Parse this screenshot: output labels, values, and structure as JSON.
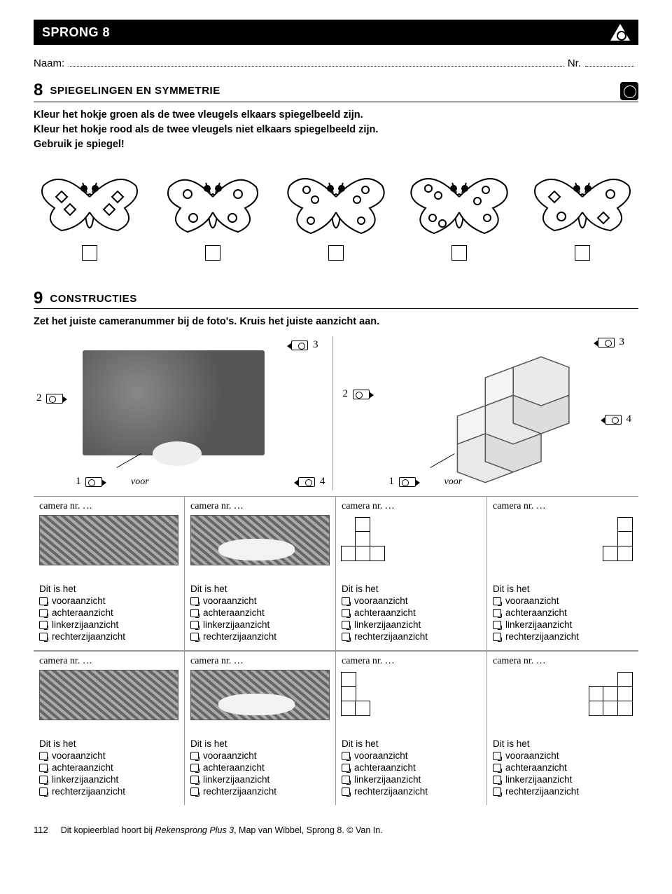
{
  "header": {
    "title": "SPRONG 8"
  },
  "name_row": {
    "naam_label": "Naam:",
    "nr_label": "Nr."
  },
  "section8": {
    "number": "8",
    "title": "SPIEGELINGEN EN SYMMETRIE",
    "instr_line1": "Kleur het hokje groen als de twee vleugels elkaars spiegelbeeld zijn.",
    "instr_line2": "Kleur het hokje rood als de twee vleugels niet elkaars spiegelbeeld zijn.",
    "instr_line3": "Gebruik je spiegel!"
  },
  "section9": {
    "number": "9",
    "title": "CONSTRUCTIES",
    "instr": "Zet het juiste cameranummer bij de foto's. Kruis het juiste aanzicht aan.",
    "camera_numbers": {
      "c1": "1",
      "c2": "2",
      "c3": "3",
      "c4": "4"
    },
    "voor": "voor",
    "camnr_label": "camera nr. …",
    "ditishet": "Dit is het",
    "options": {
      "vooraanzicht": "vooraanzicht",
      "achteraanzicht": "achteraanzicht",
      "linkerzijaanzicht": "linkerzijaanzicht",
      "rechterzijaanzicht": "rechterzijaanzicht"
    }
  },
  "footer": {
    "page": "112",
    "text_before": "Dit kopieerblad hoort bij ",
    "text_italic": "Rekensprong Plus 3",
    "text_after": ", Map van Wibbel, Sprong 8. © Van In."
  },
  "colors": {
    "black": "#000000",
    "white": "#ffffff",
    "grid_border": "#999999",
    "marble_dark": "#555555",
    "marble_light": "#aaaaaa"
  }
}
